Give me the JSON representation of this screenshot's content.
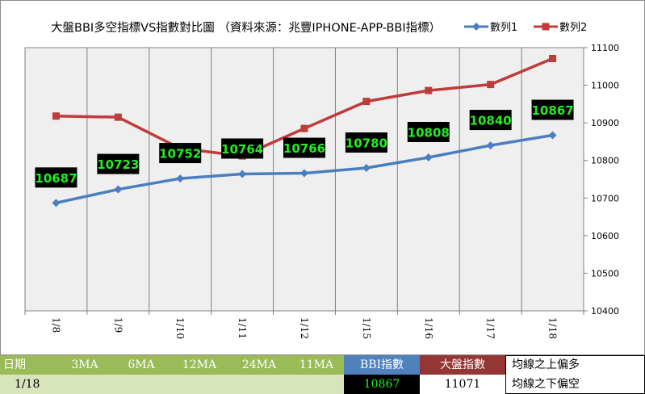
{
  "chart_data": {
    "type": "line",
    "title": "大盤BBI多空指標VS指數對比圖 （資料來源：兆豐IPHONE-APP-BBI指標）",
    "categories": [
      "1/8",
      "1/9",
      "1/10",
      "1/11",
      "1/12",
      "1/15",
      "1/16",
      "1/17",
      "1/18"
    ],
    "series": [
      {
        "name": "數列1",
        "color": "#4a7ebf",
        "marker": "diamond",
        "values": [
          10687,
          10723,
          10752,
          10764,
          10766,
          10780,
          10808,
          10840,
          10867
        ],
        "data_labels": true
      },
      {
        "name": "數列2",
        "color": "#be3c3a",
        "marker": "square",
        "values": [
          10918,
          10915,
          10832,
          10812,
          10885,
          10957,
          10986,
          11002,
          11071
        ],
        "data_labels": false
      }
    ],
    "y_axis": {
      "position": "right",
      "ylim": [
        10400,
        11100
      ],
      "ticks": [
        "10400",
        "10500",
        "10600",
        "10700",
        "10800",
        "10900",
        "11000",
        "11100"
      ]
    },
    "grid": {
      "vertical": true,
      "horizontal": false
    },
    "plot_background": "#efefef",
    "legend_position": "top-right",
    "data_label_style": {
      "background": "#000000",
      "color": "#22ee22"
    }
  },
  "table": {
    "headers": [
      "日期",
      "3MA",
      "6MA",
      "12MA",
      "24MA",
      "11MA",
      "BBI指數",
      "大盤指數",
      "均線之上偏多"
    ],
    "row": [
      "1/18",
      "",
      "",
      "",
      "",
      "",
      "10867",
      "11071",
      "均線之下偏空"
    ],
    "colors": {
      "green_header": "#9bbb59",
      "light_green": "#d8e4bc",
      "bbi_header": "#4f81bd",
      "index_header": "#943634",
      "bbi_cell": "#000000",
      "bbi_text": "#22ee22"
    }
  }
}
